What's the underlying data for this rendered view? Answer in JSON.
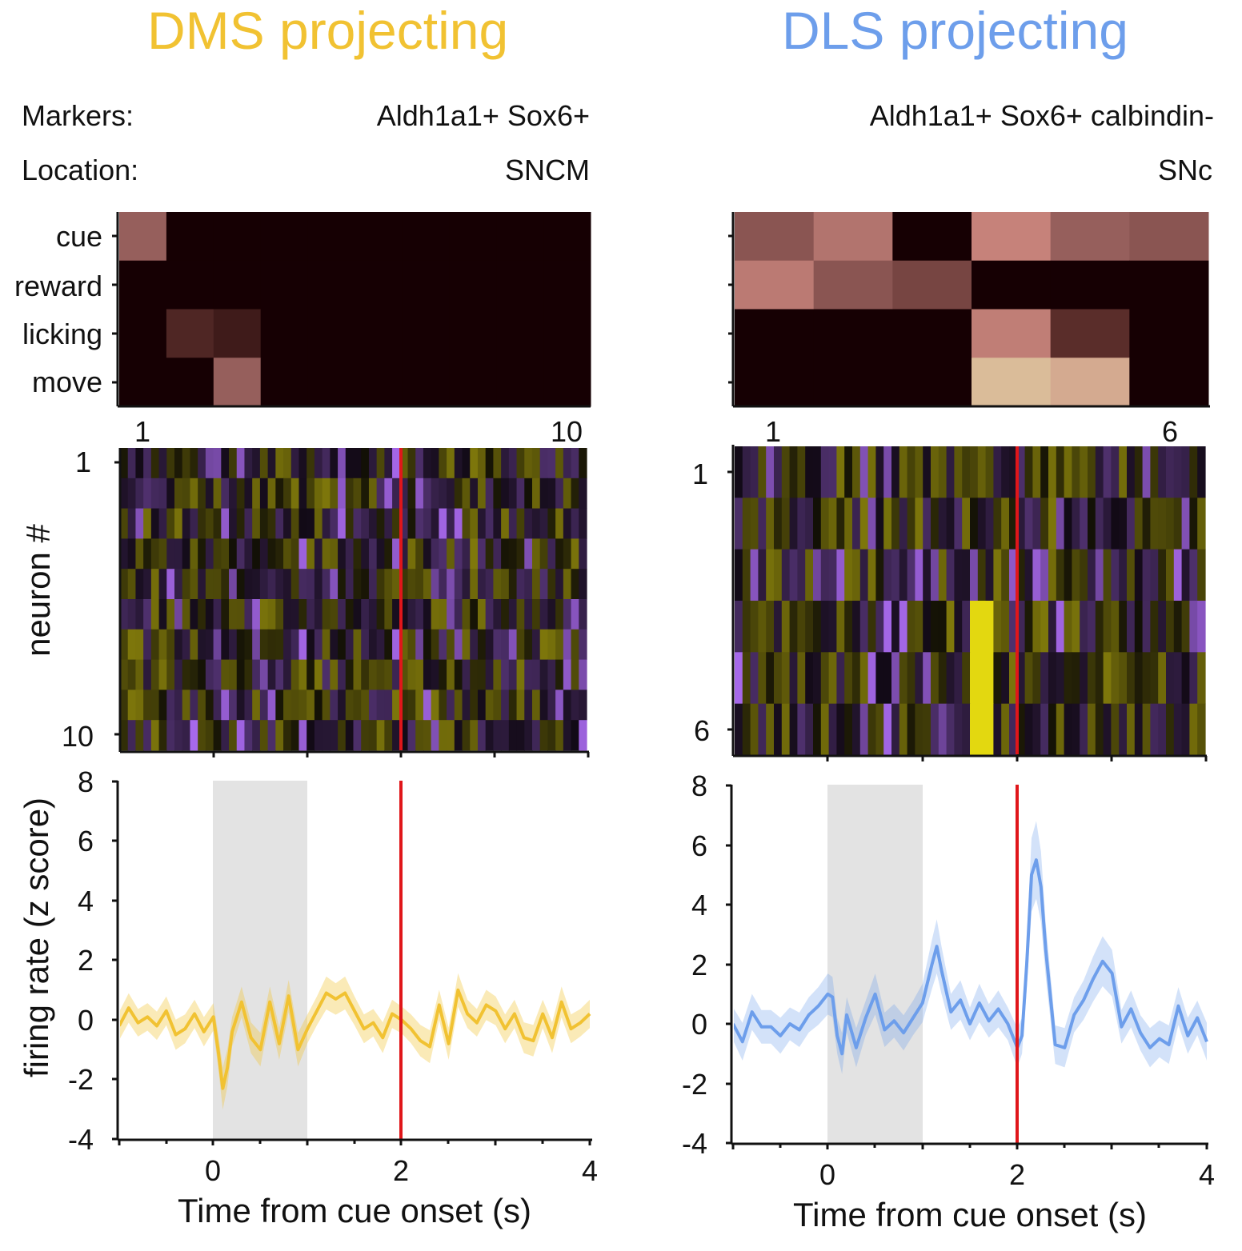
{
  "header": {
    "left_title": "DMS projecting",
    "right_title": "DLS projecting",
    "markers_label": "Markers:",
    "location_label": "Location:",
    "left_markers": "Aldh1a1+ Sox6+",
    "left_location": "SNCM",
    "right_markers": "Aldh1a1+ Sox6+ calbindin-",
    "right_location": "SNc"
  },
  "colors": {
    "dms": "#f1c232",
    "dls": "#6d9eeb",
    "reward_line": "#e0161a",
    "cue_shade": "#e3e3e3"
  },
  "chart_data": [
    {
      "panel": "DMS marker heatmap",
      "type": "heatmap",
      "rows": [
        "cue",
        "reward",
        "licking",
        "move"
      ],
      "columns": [
        1,
        2,
        3,
        4,
        5,
        6,
        7,
        8,
        9,
        10
      ],
      "x_tick_labels": [
        "1",
        "10"
      ],
      "values": [
        [
          0.55,
          0,
          0,
          0,
          0,
          0,
          0,
          0,
          0,
          0
        ],
        [
          0,
          0,
          0,
          0,
          0,
          0,
          0,
          0,
          0,
          0
        ],
        [
          0,
          0.25,
          0.18,
          0,
          0,
          0,
          0,
          0,
          0,
          0
        ],
        [
          0,
          0,
          0.55,
          0,
          0,
          0,
          0,
          0,
          0,
          0
        ]
      ]
    },
    {
      "panel": "DLS marker heatmap",
      "type": "heatmap",
      "rows": [
        "cue",
        "reward",
        "licking",
        "move"
      ],
      "columns": [
        1,
        2,
        3,
        4,
        5,
        6
      ],
      "x_tick_labels": [
        "1",
        "6"
      ],
      "values": [
        [
          0.5,
          0.65,
          0,
          0.72,
          0.55,
          0.5
        ],
        [
          0.68,
          0.5,
          0.42,
          0,
          0,
          0
        ],
        [
          0,
          0,
          0,
          0.7,
          0.3,
          0
        ],
        [
          0,
          0,
          0,
          0.95,
          0.88,
          0
        ]
      ]
    },
    {
      "panel": "DMS neuron raster",
      "type": "heatmap",
      "ylabel": "neuron #",
      "y_tick_labels": [
        "1",
        "10"
      ],
      "neurons": 10,
      "time_range": [
        -1,
        4
      ]
    },
    {
      "panel": "DLS neuron raster",
      "type": "heatmap",
      "y_tick_labels": [
        "1",
        "6"
      ],
      "neurons": 6,
      "time_range": [
        -1,
        4
      ]
    },
    {
      "panel": "DMS firing rate",
      "type": "line",
      "xlabel": "Time from cue onset (s)",
      "ylabel": "firing rate (z score)",
      "xlim": [
        -1,
        4
      ],
      "ylim": [
        -4,
        8
      ],
      "x_ticks": [
        0,
        2,
        4
      ],
      "y_ticks": [
        -4,
        -2,
        0,
        2,
        4,
        6,
        8
      ],
      "cue_window": [
        0,
        1
      ],
      "reward_time": 2,
      "series": [
        {
          "x": [
            -1.0,
            -0.9,
            -0.8,
            -0.7,
            -0.6,
            -0.5,
            -0.4,
            -0.3,
            -0.2,
            -0.1,
            0.0,
            0.05,
            0.1,
            0.15,
            0.2,
            0.3,
            0.4,
            0.5,
            0.6,
            0.7,
            0.8,
            0.9,
            1.0,
            1.1,
            1.2,
            1.3,
            1.4,
            1.5,
            1.6,
            1.7,
            1.8,
            1.9,
            2.0,
            2.1,
            2.2,
            2.3,
            2.4,
            2.5,
            2.6,
            2.7,
            2.8,
            2.9,
            3.0,
            3.1,
            3.2,
            3.3,
            3.4,
            3.5,
            3.6,
            3.7,
            3.8,
            3.9,
            4.0
          ],
          "y": [
            -0.2,
            0.4,
            -0.1,
            0.1,
            -0.2,
            0.3,
            -0.5,
            -0.3,
            0.2,
            -0.4,
            0.1,
            -1.0,
            -2.3,
            -1.6,
            -0.4,
            0.6,
            -0.6,
            -1.0,
            0.6,
            -0.8,
            0.8,
            -1.0,
            -0.3,
            0.3,
            0.9,
            0.7,
            0.9,
            0.3,
            -0.3,
            -0.1,
            -0.6,
            0.2,
            0.0,
            -0.3,
            -0.7,
            -0.9,
            0.5,
            -0.8,
            1.0,
            0.2,
            -0.1,
            0.5,
            0.3,
            -0.3,
            0.2,
            -0.6,
            -0.7,
            0.2,
            -0.6,
            0.6,
            -0.3,
            -0.1,
            0.2
          ],
          "error": 0.45
        }
      ]
    },
    {
      "panel": "DLS firing rate",
      "type": "line",
      "xlabel": "Time from cue onset (s)",
      "xlim": [
        -1,
        4
      ],
      "ylim": [
        -4,
        8
      ],
      "x_ticks": [
        0,
        2,
        4
      ],
      "y_ticks": [
        -4,
        -2,
        0,
        2,
        4,
        6,
        8
      ],
      "cue_window": [
        0,
        1
      ],
      "reward_time": 2,
      "series": [
        {
          "x": [
            -1.0,
            -0.9,
            -0.8,
            -0.7,
            -0.6,
            -0.5,
            -0.4,
            -0.3,
            -0.2,
            -0.1,
            0.0,
            0.05,
            0.1,
            0.15,
            0.2,
            0.3,
            0.4,
            0.5,
            0.6,
            0.7,
            0.8,
            0.9,
            1.0,
            1.1,
            1.15,
            1.2,
            1.3,
            1.4,
            1.5,
            1.6,
            1.7,
            1.8,
            1.9,
            2.0,
            2.05,
            2.1,
            2.15,
            2.2,
            2.25,
            2.3,
            2.4,
            2.5,
            2.6,
            2.7,
            2.8,
            2.9,
            3.0,
            3.1,
            3.2,
            3.3,
            3.4,
            3.5,
            3.6,
            3.7,
            3.8,
            3.9,
            4.0
          ],
          "y": [
            0.0,
            -0.6,
            0.4,
            -0.1,
            -0.1,
            -0.4,
            0.0,
            -0.2,
            0.3,
            0.6,
            1.0,
            0.9,
            -0.4,
            -1.0,
            0.3,
            -0.8,
            0.2,
            1.0,
            -0.2,
            0.1,
            -0.3,
            0.2,
            0.7,
            2.0,
            2.6,
            1.8,
            0.4,
            0.8,
            0.0,
            0.7,
            0.1,
            0.5,
            0.0,
            -0.8,
            -0.4,
            2.0,
            5.0,
            5.5,
            4.6,
            2.5,
            -0.7,
            -0.8,
            0.3,
            0.8,
            1.5,
            2.1,
            1.7,
            -0.1,
            0.5,
            -0.3,
            -0.8,
            -0.5,
            -0.7,
            0.6,
            -0.4,
            0.2,
            -0.6
          ],
          "error": 0.55
        }
      ]
    }
  ]
}
